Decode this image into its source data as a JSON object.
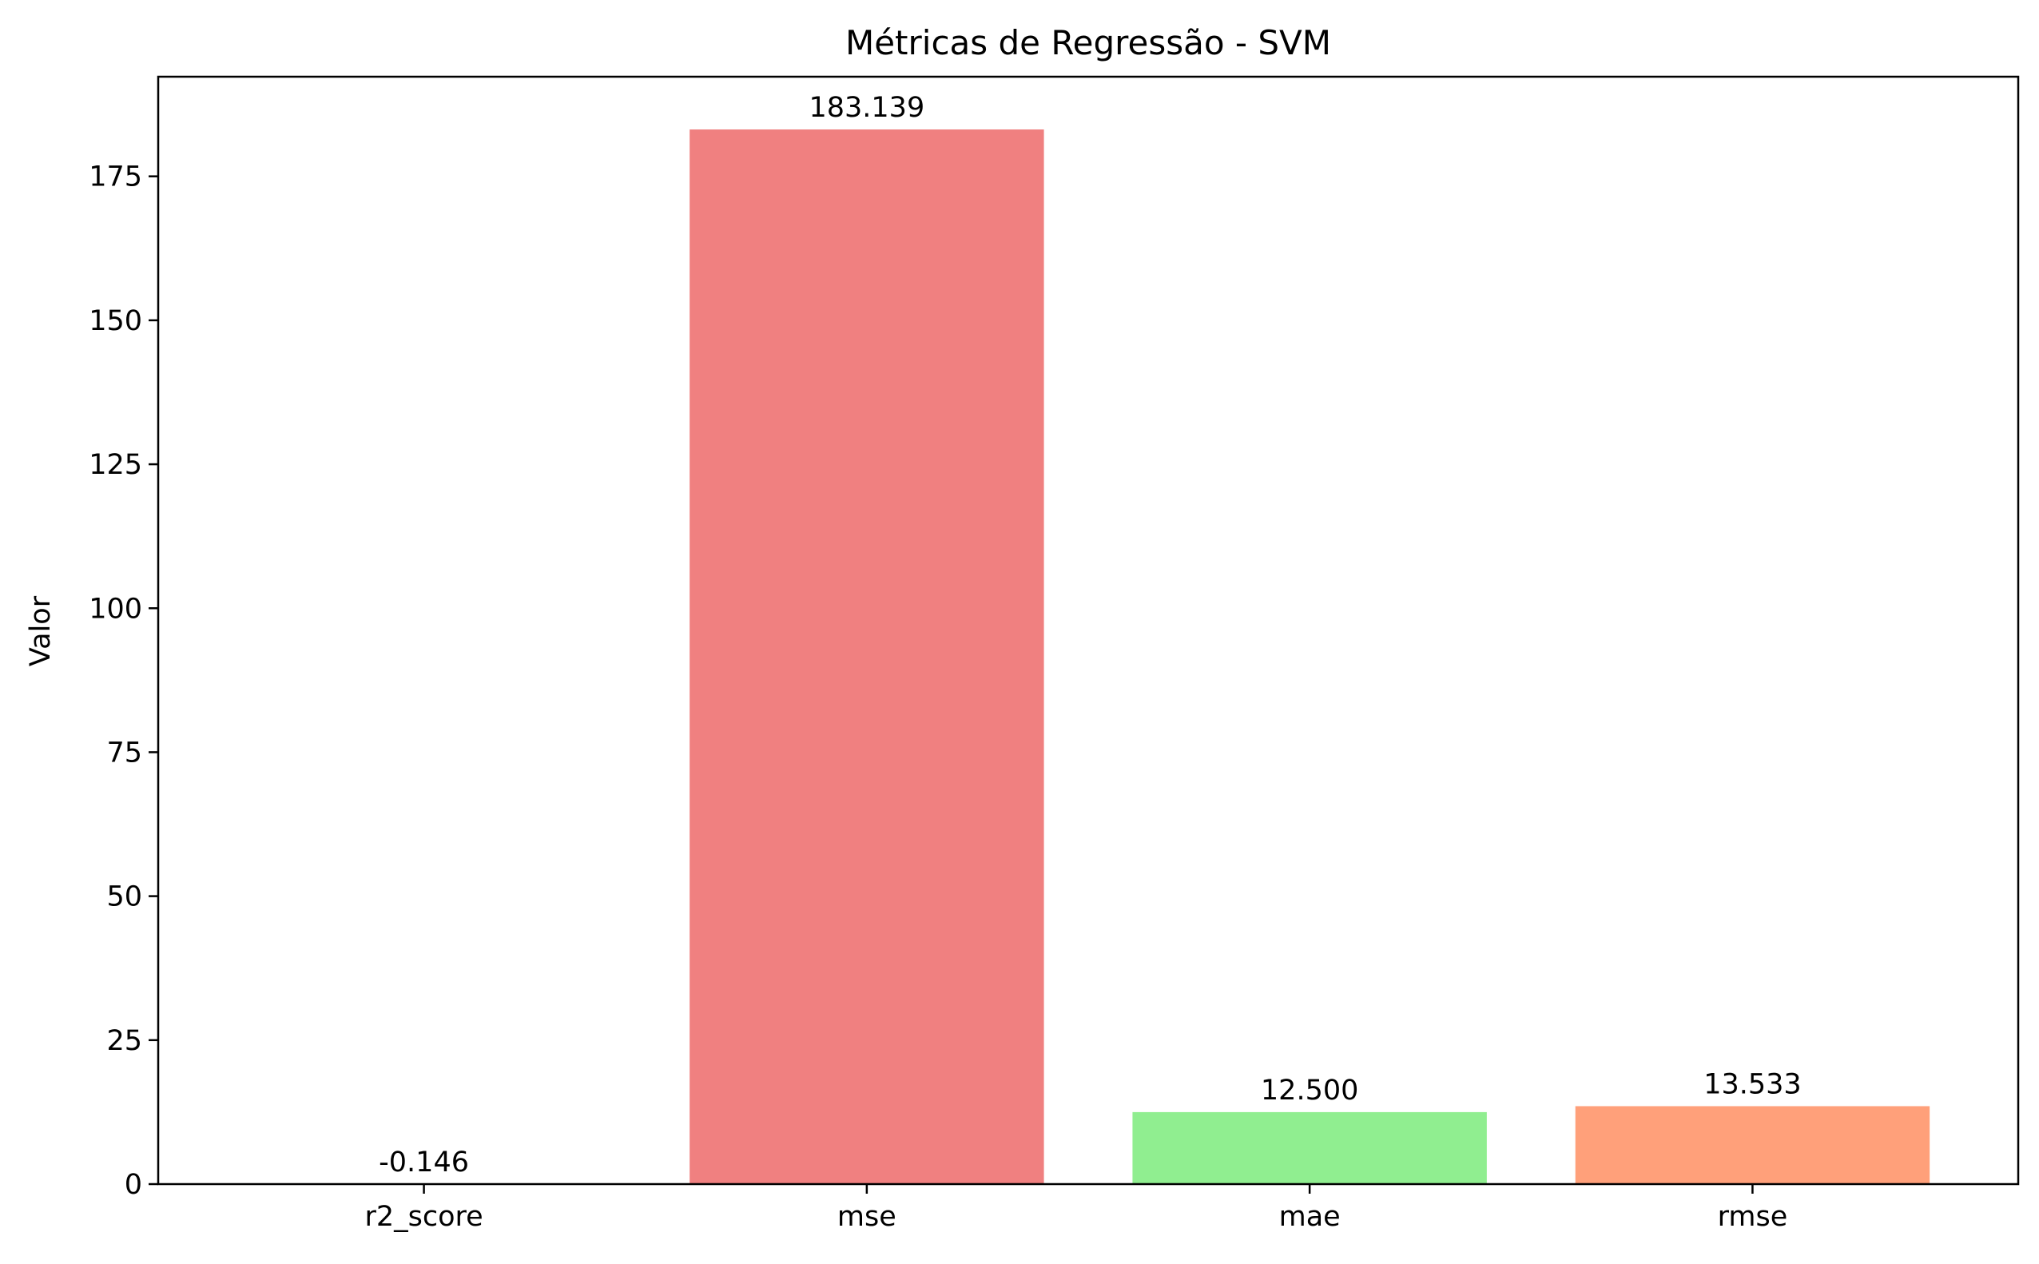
{
  "chart_data": {
    "type": "bar",
    "title": "Métricas de Regressão - SVM",
    "xlabel": "",
    "ylabel": "Valor",
    "categories": [
      "r2_score",
      "mse",
      "mae",
      "rmse"
    ],
    "values": [
      -0.146,
      183.139,
      12.5,
      13.533
    ],
    "value_labels": [
      "-0.146",
      "183.139",
      "12.500",
      "13.533"
    ],
    "colors": [
      "#87ceeb",
      "#f08080",
      "#90ee90",
      "#ffa07a"
    ],
    "ylim": [
      0,
      192.3
    ],
    "yticks": [
      0,
      25,
      50,
      75,
      100,
      125,
      150,
      175
    ],
    "ytick_labels": [
      "0",
      "25",
      "50",
      "75",
      "100",
      "125",
      "150",
      "175"
    ],
    "grid": false,
    "legend": "none"
  }
}
